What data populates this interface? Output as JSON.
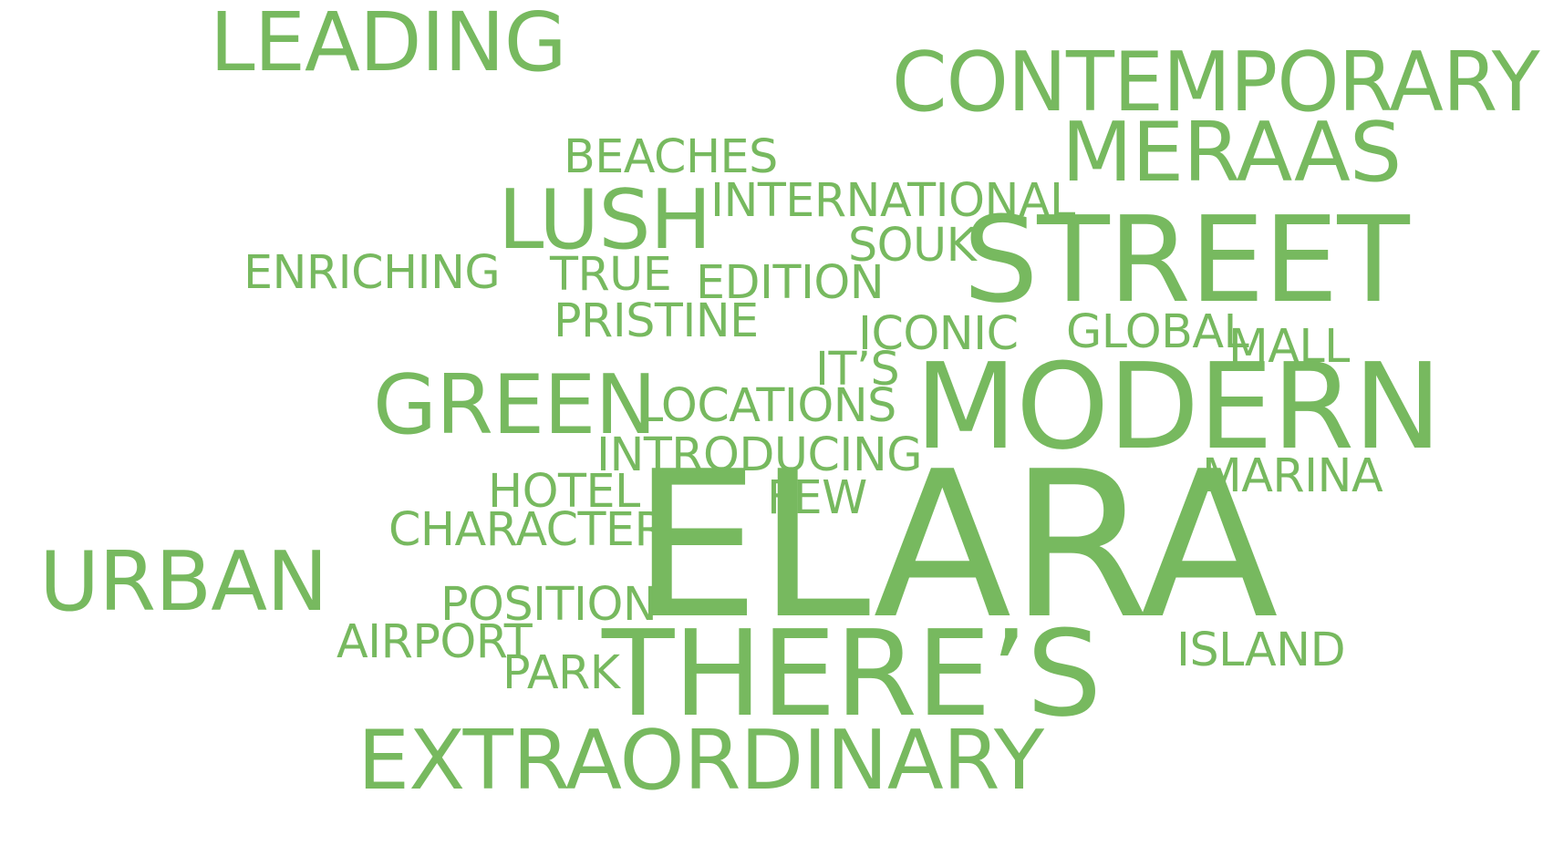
{
  "word_cloud": {
    "color": "#77b95f",
    "words": [
      {
        "text": "LEADING",
        "name": "word-leading"
      },
      {
        "text": "CONTEMPORARY",
        "name": "word-contemporary"
      },
      {
        "text": "MERAAS",
        "name": "word-meraas"
      },
      {
        "text": "BEACHES",
        "name": "word-beaches"
      },
      {
        "text": "INTERNATIONAL",
        "name": "word-international"
      },
      {
        "text": "LUSH",
        "name": "word-lush"
      },
      {
        "text": "SOUK",
        "name": "word-souk"
      },
      {
        "text": "STREET",
        "name": "word-street"
      },
      {
        "text": "ENRICHING",
        "name": "word-enriching"
      },
      {
        "text": "TRUE",
        "name": "word-true"
      },
      {
        "text": "EDITION",
        "name": "word-edition"
      },
      {
        "text": "PRISTINE",
        "name": "word-pristine"
      },
      {
        "text": "ICONIC",
        "name": "word-iconic"
      },
      {
        "text": "GLOBAL",
        "name": "word-global"
      },
      {
        "text": "MALL",
        "name": "word-mall"
      },
      {
        "text": "IT’S",
        "name": "word-its"
      },
      {
        "text": "GREEN",
        "name": "word-green"
      },
      {
        "text": "LOCATIONS",
        "name": "word-locations"
      },
      {
        "text": "MODERN",
        "name": "word-modern"
      },
      {
        "text": "INTRODUCING",
        "name": "word-introducing"
      },
      {
        "text": "MARINA",
        "name": "word-marina"
      },
      {
        "text": "HOTEL",
        "name": "word-hotel"
      },
      {
        "text": "FEW",
        "name": "word-few"
      },
      {
        "text": "CHARACTER",
        "name": "word-character"
      },
      {
        "text": "ELARA",
        "name": "word-elara"
      },
      {
        "text": "URBAN",
        "name": "word-urban"
      },
      {
        "text": "POSITION",
        "name": "word-position"
      },
      {
        "text": "AIRPORT",
        "name": "word-airport"
      },
      {
        "text": "PARK",
        "name": "word-park"
      },
      {
        "text": "ISLAND",
        "name": "word-island"
      },
      {
        "text": "THERE’S",
        "name": "word-theres"
      },
      {
        "text": "EXTRAORDINARY",
        "name": "word-extraordinary"
      }
    ]
  }
}
